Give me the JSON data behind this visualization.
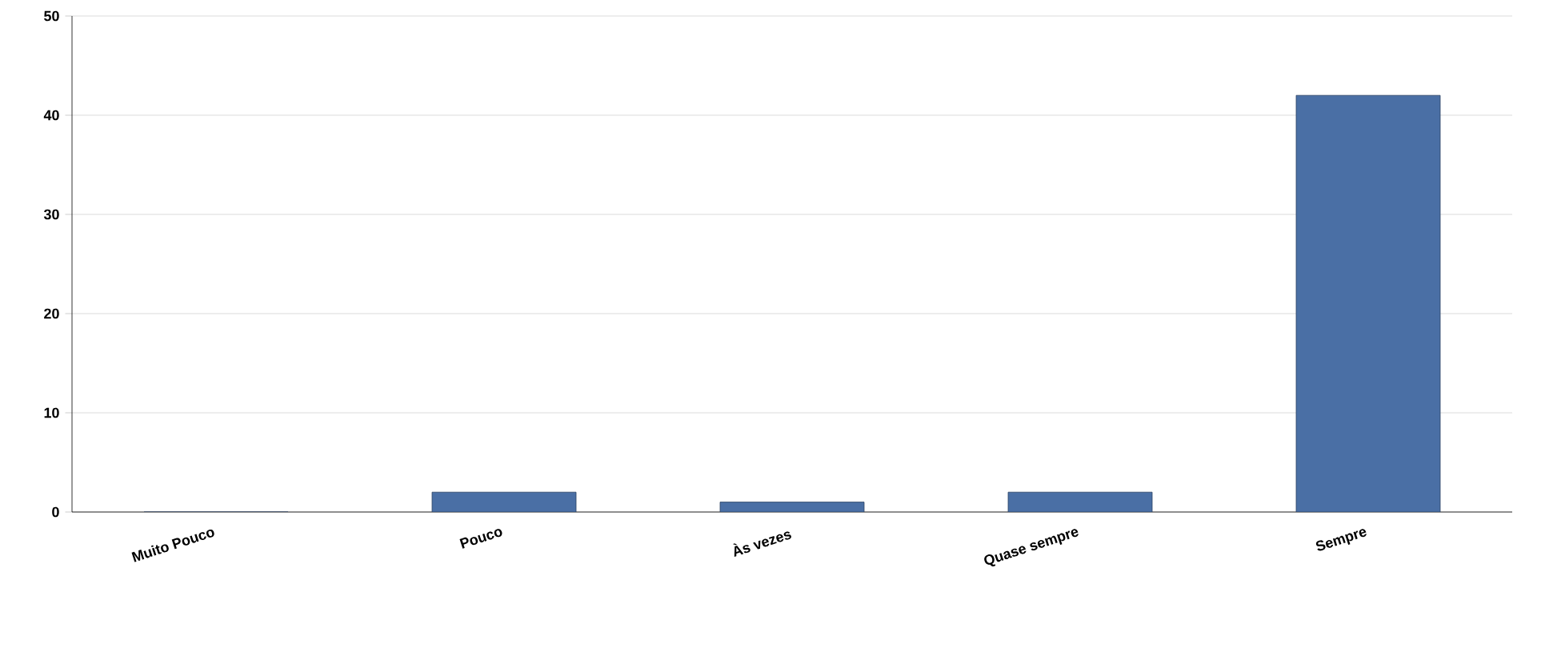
{
  "chart_data": {
    "type": "bar",
    "categories": [
      "Muito Pouco",
      "Pouco",
      "Às vezes",
      "Quase sempre",
      "Sempre"
    ],
    "values": [
      0,
      2,
      1,
      2,
      42
    ],
    "color": "#4a6fa5",
    "ylim": [
      0,
      50
    ],
    "yticks": [
      0,
      10,
      20,
      30,
      40,
      50
    ],
    "grid": "y"
  }
}
